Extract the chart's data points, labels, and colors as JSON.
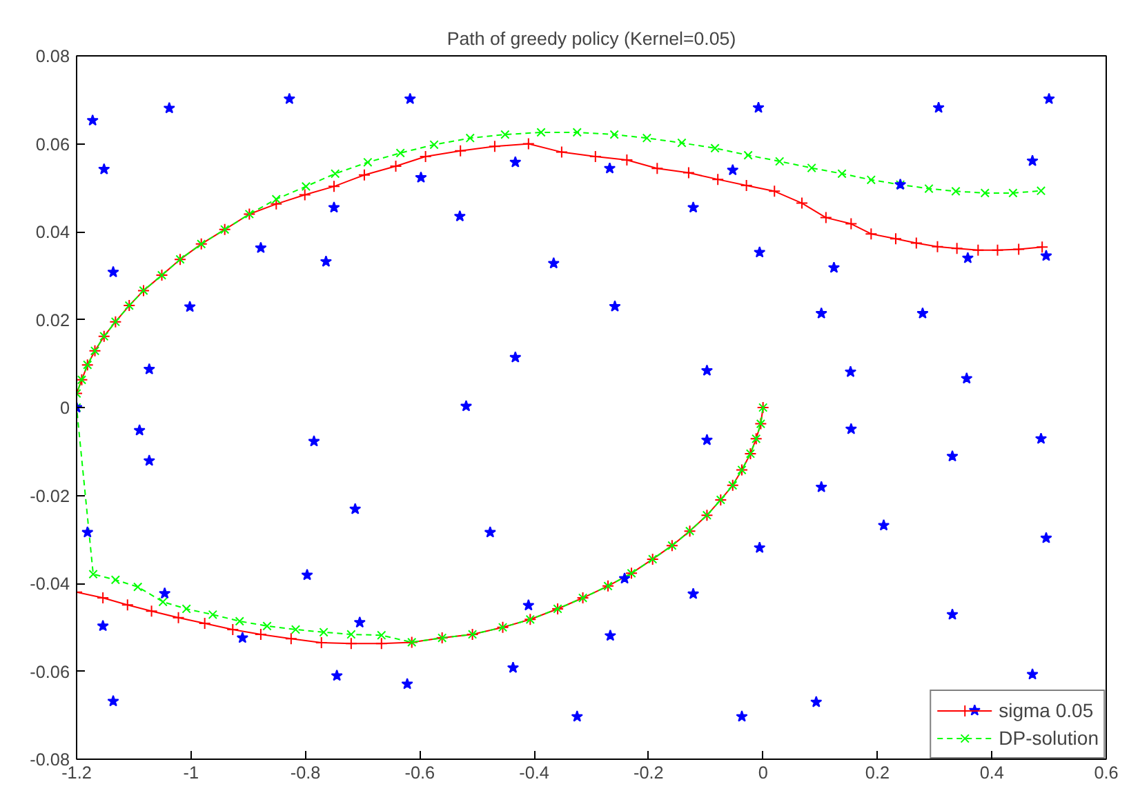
{
  "chart_data": {
    "type": "line",
    "title": "Path of greedy policy (Kernel=0.05)",
    "xlim": [
      -1.2,
      0.6
    ],
    "ylim": [
      -0.08,
      0.08
    ],
    "xticks": [
      -1.2,
      -1,
      -0.8,
      -0.6,
      -0.4,
      -0.2,
      0,
      0.2,
      0.4,
      0.6
    ],
    "yticks": [
      -0.08,
      -0.06,
      -0.04,
      -0.02,
      0,
      0.02,
      0.04,
      0.06,
      0.08
    ],
    "grid": false,
    "legend": "bottom right",
    "series": [
      {
        "name": "sigma 0.05",
        "color": "#ff0000",
        "marker": "cross",
        "line_style": "solid",
        "x": [
          0,
          -0.004,
          -0.012,
          -0.022,
          -0.037,
          -0.053,
          -0.074,
          -0.098,
          -0.128,
          -0.159,
          -0.193,
          -0.23,
          -0.271,
          -0.315,
          -0.359,
          -0.407,
          -0.455,
          -0.508,
          -0.561,
          -0.614,
          -0.667,
          -0.72,
          -0.772,
          -0.825,
          -0.878,
          -0.927,
          -0.976,
          -1.022,
          -1.069,
          -1.111,
          -1.154,
          -1.2,
          -1.2,
          -1.2,
          -1.191,
          -1.181,
          -1.168,
          -1.152,
          -1.132,
          -1.108,
          -1.083,
          -1.051,
          -1.019,
          -0.982,
          -0.941,
          -0.898,
          -0.851,
          -0.801,
          -0.75,
          -0.697,
          -0.642,
          -0.59,
          -0.529,
          -0.469,
          -0.41,
          -0.352,
          -0.293,
          -0.238,
          -0.185,
          -0.13,
          -0.079,
          -0.029,
          0.02,
          0.068,
          0.11,
          0.154,
          0.189,
          0.232,
          0.268,
          0.305,
          0.339,
          0.376,
          0.41,
          0.447,
          0.488
        ],
        "values": [
          0,
          -0.0037,
          -0.0071,
          -0.0105,
          -0.0142,
          -0.0177,
          -0.021,
          -0.0245,
          -0.0281,
          -0.0314,
          -0.0345,
          -0.0377,
          -0.0406,
          -0.0433,
          -0.0458,
          -0.0482,
          -0.05,
          -0.0516,
          -0.0524,
          -0.0534,
          -0.0537,
          -0.0537,
          -0.0535,
          -0.0526,
          -0.0516,
          -0.0505,
          -0.0491,
          -0.0478,
          -0.0463,
          -0.0449,
          -0.0433,
          -0.042,
          0,
          0.0032,
          0.0063,
          0.0097,
          0.0129,
          0.0162,
          0.0195,
          0.0232,
          0.0266,
          0.0301,
          0.0337,
          0.0372,
          0.0405,
          0.044,
          0.0463,
          0.0484,
          0.0503,
          0.0529,
          0.0549,
          0.0571,
          0.0584,
          0.0594,
          0.06,
          0.0581,
          0.0571,
          0.0563,
          0.0544,
          0.0534,
          0.0519,
          0.0505,
          0.0492,
          0.0465,
          0.0432,
          0.0418,
          0.0395,
          0.0384,
          0.0374,
          0.0366,
          0.0362,
          0.0358,
          0.0358,
          0.036,
          0.0365
        ]
      },
      {
        "name": "DP-solution",
        "color": "#00ff00",
        "marker": "x",
        "line_style": "dashed",
        "x": [
          0,
          -0.004,
          -0.012,
          -0.022,
          -0.037,
          -0.053,
          -0.074,
          -0.098,
          -0.128,
          -0.159,
          -0.193,
          -0.23,
          -0.271,
          -0.315,
          -0.359,
          -0.407,
          -0.455,
          -0.508,
          -0.561,
          -0.614,
          -0.667,
          -0.72,
          -0.768,
          -0.817,
          -0.867,
          -0.915,
          -0.962,
          -1.008,
          -1.049,
          -1.093,
          -1.132,
          -1.171,
          -1.2,
          -1.2,
          -1.191,
          -1.181,
          -1.168,
          -1.152,
          -1.132,
          -1.108,
          -1.083,
          -1.051,
          -1.019,
          -0.982,
          -0.941,
          -0.898,
          -0.851,
          -0.799,
          -0.748,
          -0.691,
          -0.634,
          -0.575,
          -0.512,
          -0.451,
          -0.388,
          -0.325,
          -0.26,
          -0.203,
          -0.142,
          -0.084,
          -0.026,
          0.029,
          0.085,
          0.138,
          0.189,
          0.24,
          0.29,
          0.337,
          0.388,
          0.437,
          0.486
        ],
        "values": [
          0,
          -0.0037,
          -0.0071,
          -0.0105,
          -0.0142,
          -0.0177,
          -0.021,
          -0.0245,
          -0.0281,
          -0.0314,
          -0.0345,
          -0.0377,
          -0.0406,
          -0.0433,
          -0.0458,
          -0.0482,
          -0.05,
          -0.0516,
          -0.0524,
          -0.0534,
          -0.0518,
          -0.0516,
          -0.0511,
          -0.0505,
          -0.0497,
          -0.0486,
          -0.0471,
          -0.0458,
          -0.0442,
          -0.0408,
          -0.0392,
          -0.0379,
          0,
          0.0032,
          0.0063,
          0.0097,
          0.0129,
          0.0162,
          0.0195,
          0.0232,
          0.0266,
          0.0301,
          0.0337,
          0.0372,
          0.0405,
          0.044,
          0.0474,
          0.0503,
          0.0532,
          0.0558,
          0.0579,
          0.0598,
          0.0613,
          0.0621,
          0.0626,
          0.0626,
          0.0621,
          0.0613,
          0.0602,
          0.059,
          0.0574,
          0.056,
          0.0545,
          0.0532,
          0.0518,
          0.0507,
          0.0498,
          0.0492,
          0.0488,
          0.0488,
          0.0493
        ]
      },
      {
        "type": "scatter",
        "color": "#0000ff",
        "marker": "star",
        "x": [
          -1.172,
          -1.038,
          -0.828,
          -0.617,
          -1.152,
          -1.136,
          -1.002,
          -1.073,
          -0.878,
          -0.764,
          -0.75,
          -0.598,
          -0.53,
          -0.433,
          -0.433,
          -0.366,
          -0.519,
          -1.2,
          -0.008,
          0.307,
          0.5,
          0.471,
          -0.268,
          -0.053,
          -0.122,
          0.24,
          0.358,
          0.495,
          -0.006,
          0.124,
          -0.259,
          0.102,
          0.279,
          -0.098,
          0.153,
          0.356,
          -1.09,
          -1.073,
          -0.785,
          -1.181,
          -0.713,
          -0.477,
          -0.797,
          -1.046,
          -1.154,
          -0.91,
          -0.705,
          -0.41,
          -1.136,
          -0.745,
          -0.622,
          -0.437,
          -0.325,
          -0.098,
          0.154,
          0.331,
          0.486,
          0.102,
          0.211,
          0.495,
          -0.006,
          -0.242,
          -0.122,
          0.331,
          -0.267,
          0.471,
          0.093,
          0.37,
          -0.037
        ],
        "values": [
          0.0653,
          0.0681,
          0.0702,
          0.0702,
          0.0542,
          0.0308,
          0.0229,
          0.0087,
          0.0363,
          0.0332,
          0.0455,
          0.0523,
          0.0435,
          0.0558,
          0.0114,
          0.0328,
          0.0003,
          0,
          0.0682,
          0.0682,
          0.0702,
          0.0561,
          0.0544,
          0.054,
          0.0455,
          0.0507,
          0.034,
          0.0345,
          0.0353,
          0.0318,
          0.023,
          0.0214,
          0.0214,
          0.0084,
          0.0081,
          0.0066,
          -0.0052,
          -0.0121,
          -0.0077,
          -0.0284,
          -0.0231,
          -0.0284,
          -0.0381,
          -0.0423,
          -0.0497,
          -0.0524,
          -0.0489,
          -0.045,
          -0.0668,
          -0.061,
          -0.0629,
          -0.0592,
          -0.0703,
          -0.0074,
          -0.0049,
          -0.0111,
          -0.0071,
          -0.0181,
          -0.0268,
          -0.0297,
          -0.0319,
          -0.0389,
          -0.0424,
          -0.0471,
          -0.0519,
          -0.0607,
          -0.067,
          -0.0689,
          -0.0703
        ]
      }
    ]
  }
}
